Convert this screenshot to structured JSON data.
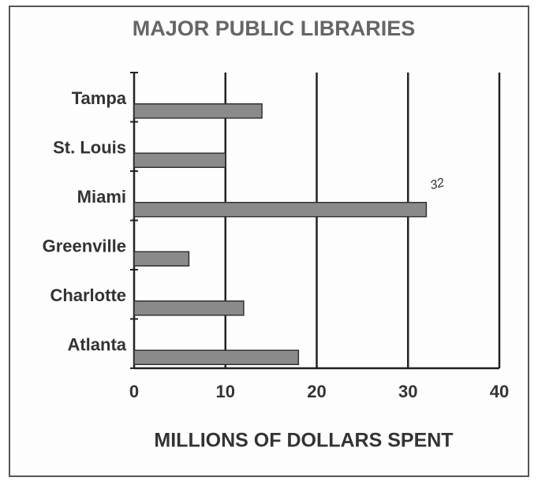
{
  "chart_data": {
    "type": "bar",
    "orientation": "horizontal",
    "title": "MAJOR PUBLIC LIBRARIES",
    "categories": [
      "Tampa",
      "St. Louis",
      "Miami",
      "Greenville",
      "Charlotte",
      "Atlanta"
    ],
    "values": [
      14,
      10,
      32,
      6,
      12,
      18
    ],
    "color": "#8a8a8a",
    "xlabel": "MILLIONS OF DOLLARS SPENT",
    "xlim": [
      0,
      40
    ],
    "xticks": [
      0,
      10,
      20,
      30,
      40
    ],
    "grid": true,
    "annotations": [
      {
        "text": "32",
        "category": "Miami"
      }
    ]
  }
}
